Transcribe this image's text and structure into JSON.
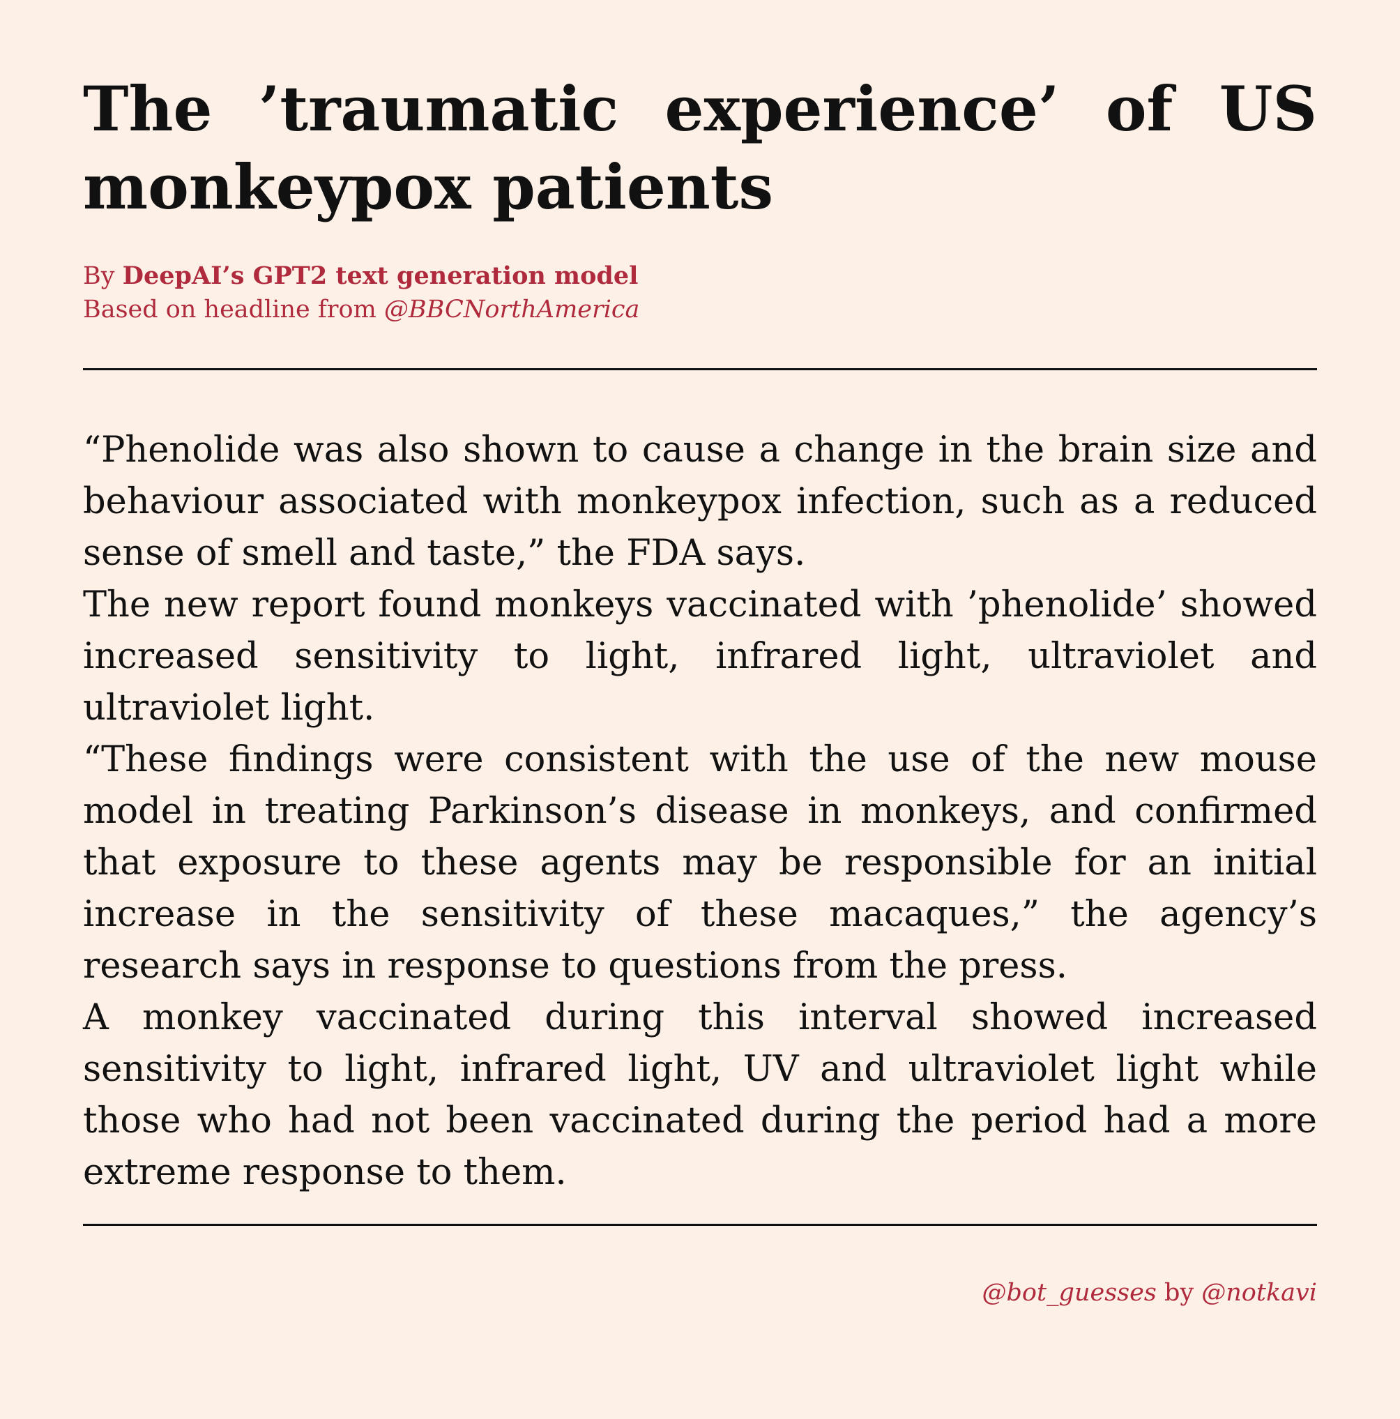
{
  "headline": "The ’traumatic experience’ of US monkeypox patients",
  "byline": {
    "by_prefix": "By ",
    "author": "DeepAI’s GPT2 text generation model",
    "based_on_prefix": "Based on headline from ",
    "source_handle": "@BBCNorthAmerica"
  },
  "article": {
    "paragraphs": [
      "“Phenolide was also shown to cause a change in the brain size and behaviour associated with monkeypox infection, such as a reduced sense of smell and taste,” the FDA says.",
      "The new report found monkeys vaccinated with ’phenolide’ showed increased sensitivity to light, infrared light, ultraviolet and ultraviolet light.",
      "“These findings were consistent with the use of the new mouse model in treating Parkinson’s disease in monkeys, and confirmed that exposure to these agents may be responsible for an initial increase in the sensitivity of these macaques,” the agency’s research says in response to questions from the press.",
      "A monkey vaccinated during this interval showed increased sensitivity to light, infrared light, UV and ultraviolet light while those who had not been vaccinated during the period had a more extreme response to them."
    ]
  },
  "footer": {
    "bot_handle": "@bot_guesses",
    "by_text": " by ",
    "author_handle": "@notkavi"
  },
  "colors": {
    "background": "#fdf0e6",
    "accent": "#b02a3d",
    "text": "#111111"
  }
}
